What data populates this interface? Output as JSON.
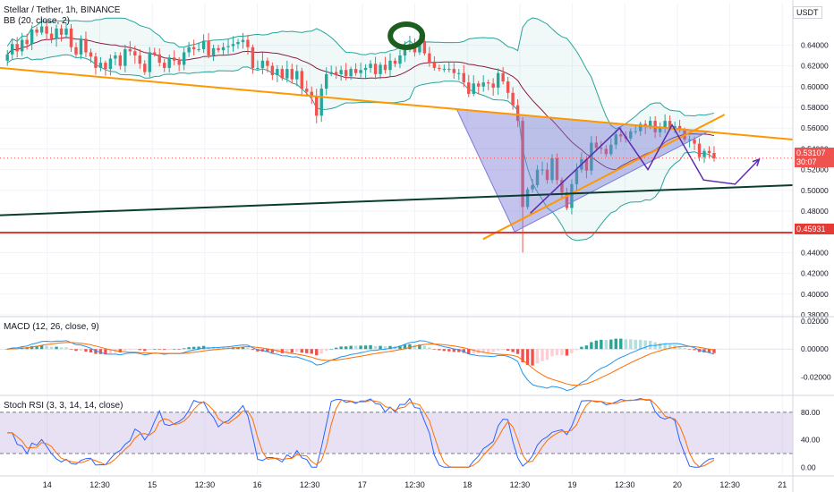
{
  "header": {
    "symbol_line": "Stellar / Tether, 1h, BINANCE",
    "bb_line": "BB (20, close, 2)",
    "macd_line": "MACD (12, 26, close, 9)",
    "stoch_line": "Stoch RSI (3, 3, 14, 14, close)",
    "currency": "USDT"
  },
  "price_tags": {
    "current": "0.53107",
    "countdown": "30:07",
    "support": "0.45931"
  },
  "colors": {
    "up": "#26a69a",
    "down": "#ef5350",
    "trend_orange": "#ff9800",
    "support_red": "#e53935",
    "long_line": "#0b3d2e",
    "triangle_fill": "#7b7bd8",
    "projection": "#5b2bb0",
    "bb_band": "#26a69a",
    "bb_basis": "#8e1b3f",
    "macd": "#2196f3",
    "signal": "#ff6d00",
    "stoch_k": "#2962ff",
    "stoch_d": "#ff6d00",
    "rsi_band": "#b39ddb",
    "circle": "#1b5e20"
  },
  "chart_data": [
    {
      "type": "candlestick",
      "title": "Stellar / Tether, 1h, BINANCE",
      "ylim": [
        0.38,
        0.68
      ],
      "y_ticks": [
        "0.64000",
        "0.62000",
        "0.60000",
        "0.58000",
        "0.56000",
        "0.54000",
        "0.52000",
        "0.50000",
        "0.48000",
        "0.46000",
        "0.44000",
        "0.42000",
        "0.40000",
        "0.38000"
      ],
      "x_ticks": [
        "14",
        "12:30",
        "15",
        "12:30",
        "16",
        "12:30",
        "17",
        "12:30",
        "18",
        "12:30",
        "19",
        "12:30",
        "20",
        "12:30",
        "21"
      ],
      "x_range_days": [
        13.55,
        21.1
      ],
      "closes": [
        0.631,
        0.641,
        0.634,
        0.645,
        0.641,
        0.655,
        0.652,
        0.658,
        0.651,
        0.646,
        0.656,
        0.65,
        0.656,
        0.638,
        0.631,
        0.646,
        0.633,
        0.629,
        0.618,
        0.623,
        0.617,
        0.627,
        0.63,
        0.62,
        0.636,
        0.634,
        0.63,
        0.622,
        0.614,
        0.633,
        0.631,
        0.623,
        0.618,
        0.628,
        0.625,
        0.621,
        0.633,
        0.638,
        0.636,
        0.636,
        0.644,
        0.63,
        0.637,
        0.635,
        0.638,
        0.639,
        0.641,
        0.643,
        0.645,
        0.638,
        0.618,
        0.618,
        0.625,
        0.62,
        0.611,
        0.617,
        0.608,
        0.617,
        0.607,
        0.615,
        0.598,
        0.595,
        0.59,
        0.572,
        0.598,
        0.612,
        0.614,
        0.612,
        0.616,
        0.61,
        0.617,
        0.613,
        0.616,
        0.618,
        0.622,
        0.612,
        0.621,
        0.616,
        0.625,
        0.622,
        0.63,
        0.639,
        0.641,
        0.633,
        0.644,
        0.632,
        0.623,
        0.618,
        0.617,
        0.617,
        0.617,
        0.613,
        0.613,
        0.604,
        0.593,
        0.603,
        0.6,
        0.604,
        0.603,
        0.599,
        0.613,
        0.605,
        0.594,
        0.582,
        0.567,
        0.484,
        0.501,
        0.505,
        0.52,
        0.52,
        0.51,
        0.531,
        0.51,
        0.498,
        0.483,
        0.506,
        0.52,
        0.53,
        0.519,
        0.546,
        0.541,
        0.54,
        0.535,
        0.544,
        0.554,
        0.552,
        0.55,
        0.557,
        0.557,
        0.564,
        0.562,
        0.567,
        0.556,
        0.561,
        0.567,
        0.56,
        0.562,
        0.558,
        0.549,
        0.549,
        0.545,
        0.532,
        0.538,
        0.536,
        0.531
      ],
      "bollinger": {
        "period": 20,
        "stddev": 2
      },
      "annotations": {
        "descending_trendline": {
          "from": [
            13.55,
            0.618
          ],
          "to": [
            21.1,
            0.549
          ]
        },
        "ascending_trendline": {
          "from": [
            18.15,
            0.453
          ],
          "to": [
            20.45,
            0.573
          ]
        },
        "long_support_line": {
          "from": [
            13.55,
            0.476
          ],
          "to": [
            21.1,
            0.505
          ]
        },
        "support_level": 0.45931,
        "triangle": [
          [
            17.9,
            0.578
          ],
          [
            20.3,
            0.557
          ],
          [
            18.45,
            0.46
          ]
        ],
        "projection_path": [
          [
            18.6,
            0.478
          ],
          [
            19.45,
            0.56
          ],
          [
            19.72,
            0.52
          ],
          [
            19.95,
            0.563
          ],
          [
            20.25,
            0.51
          ],
          [
            20.55,
            0.506
          ],
          [
            20.78,
            0.53
          ]
        ],
        "highlight_circle_center": [
          17.42,
          0.649
        ]
      }
    },
    {
      "type": "line",
      "title": "MACD (12, 26, close, 9)",
      "ylim": [
        -0.032,
        0.022
      ],
      "y_ticks": [
        "0.02000",
        "0.00000",
        "-0.02000"
      ],
      "series": [
        {
          "name": "MACD",
          "values": "derived from closes (12, 26, 9)"
        },
        {
          "name": "Signal",
          "values": "derived from closes (12, 26, 9)"
        },
        {
          "name": "Histogram",
          "values": "derived from closes (12, 26, 9)"
        }
      ]
    },
    {
      "type": "line",
      "title": "Stoch RSI (3, 3, 14, 14, close)",
      "ylim": [
        -10,
        102
      ],
      "y_ticks": [
        "80.00",
        "40.00",
        "0.00"
      ],
      "bands": [
        20,
        80
      ],
      "series": [
        {
          "name": "K",
          "values": "derived from closes (3, 3, 14, 14)"
        },
        {
          "name": "D",
          "values": "derived from closes (3, 3, 14, 14)"
        }
      ]
    }
  ]
}
